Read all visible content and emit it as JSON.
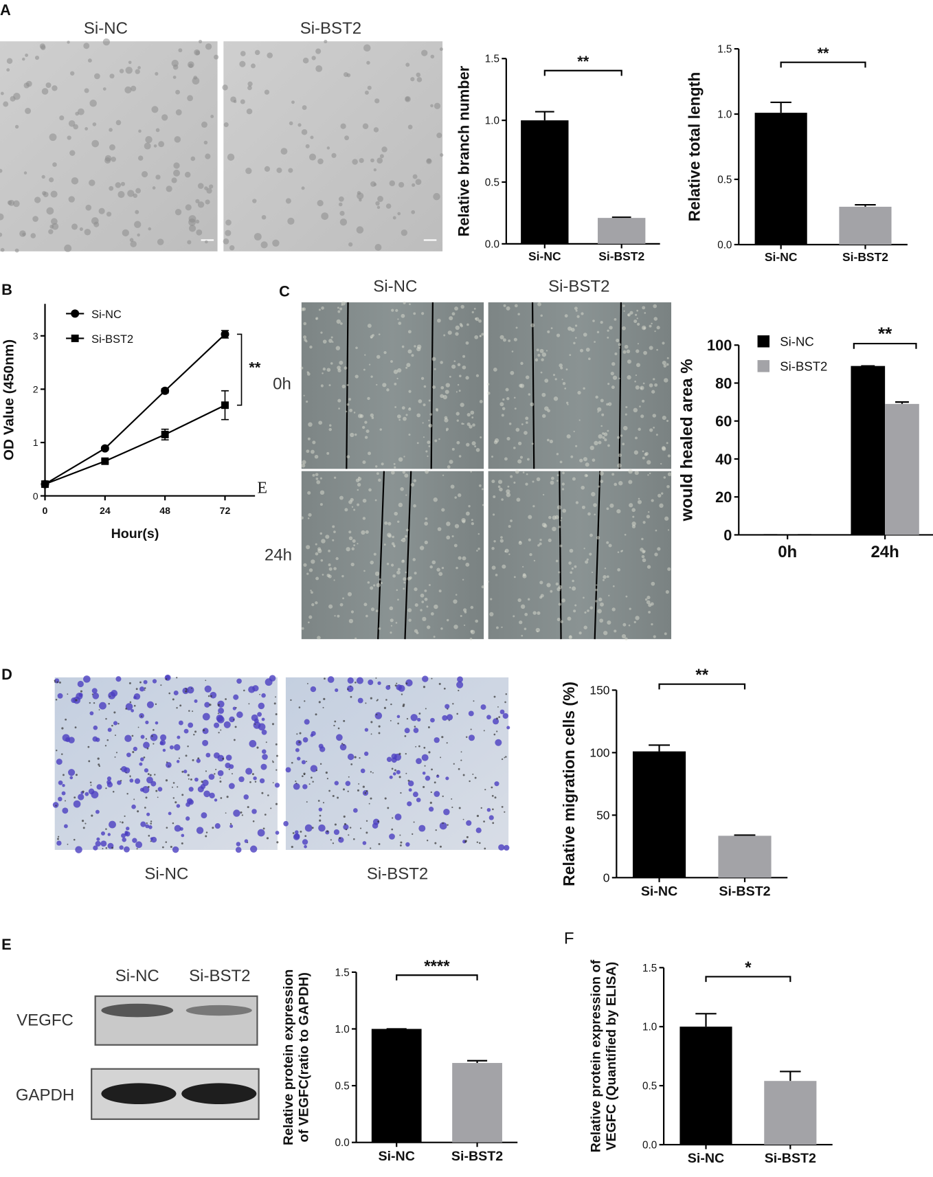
{
  "panel_labels": [
    "A",
    "B",
    "C",
    "D",
    "E",
    "F"
  ],
  "images": {
    "a_cols": [
      "Si-NC",
      "Si-BST2"
    ],
    "c_cols": [
      "Si-NC",
      "Si-BST2"
    ],
    "c_rows": [
      "0h",
      "24h"
    ],
    "d_cols": [
      "Si-NC",
      "Si-BST2"
    ],
    "e_cols": [
      "Si-NC",
      "Si-BST2"
    ],
    "e_rows": [
      "VEGFC",
      "GAPDH"
    ]
  },
  "chart_data": [
    {
      "type": "bar",
      "ylabel": [
        "Relative branch number"
      ],
      "categories": [
        "Si-NC",
        "Si-BST2"
      ],
      "values": [
        1.0,
        0.21
      ],
      "errors": [
        0.07,
        0.005
      ],
      "colors": [
        "#000000",
        "#a3a3a7"
      ],
      "ylim": [
        0,
        1.5
      ],
      "yticks": [
        {
          "value": 0,
          "label": "0.0"
        },
        0.5,
        {
          "value": 1,
          "label": "1.0"
        },
        1.5
      ],
      "significance": "**"
    },
    {
      "type": "bar",
      "ylabel": [
        "Relative total length"
      ],
      "categories": [
        "Si-NC",
        "Si-BST2"
      ],
      "values": [
        1.01,
        0.29
      ],
      "errors": [
        0.08,
        0.015
      ],
      "colors": [
        "#000000",
        "#a3a3a7"
      ],
      "ylim": [
        0,
        1.5
      ],
      "yticks": [
        {
          "value": 0,
          "label": "0.0"
        },
        0.5,
        {
          "value": 1,
          "label": "1.0"
        },
        1.5
      ],
      "significance": "**"
    },
    {
      "type": "line",
      "ylabel": [
        "OD Value (450nm)"
      ],
      "xlabel": "Hour(s)",
      "x": [
        0,
        24,
        48,
        72
      ],
      "series": [
        {
          "name": "Si-NC",
          "color": "#000000",
          "marker": "circle",
          "values": [
            0.22,
            0.89,
            1.97,
            3.03
          ],
          "errors": [
            0.02,
            0.03,
            0.04,
            0.07
          ]
        },
        {
          "name": "Si-BST2",
          "color": "#000000",
          "marker": "square",
          "values": [
            0.22,
            0.65,
            1.15,
            1.7
          ],
          "errors": [
            0.02,
            0.03,
            0.1,
            0.27
          ]
        }
      ],
      "xlim": [
        0,
        84
      ],
      "ylim": [
        0,
        3.6
      ],
      "xticks": [
        0,
        24,
        48,
        72
      ],
      "yticks": [
        0,
        1,
        2,
        3
      ],
      "significance": "**",
      "corner_mark": "E"
    },
    {
      "type": "grouped-bar",
      "ylabel": [
        "would healed area %"
      ],
      "categories": [
        "0h",
        "24h"
      ],
      "series": [
        {
          "name": "Si-NC",
          "color": "#000000",
          "values": [
            0,
            89
          ],
          "errors": [
            0,
            0
          ]
        },
        {
          "name": "Si-BST2",
          "color": "#a3a3a7",
          "values": [
            0,
            69
          ],
          "errors": [
            0,
            1
          ]
        }
      ],
      "ylim": [
        0,
        100
      ],
      "yticks": [
        0,
        20,
        40,
        60,
        80,
        100
      ],
      "significance": "**"
    },
    {
      "type": "bar",
      "ylabel": [
        "Relative migration cells (%)"
      ],
      "categories": [
        "Si-NC",
        "Si-BST2"
      ],
      "values": [
        101,
        33.5
      ],
      "errors": [
        5,
        0.5
      ],
      "colors": [
        "#000000",
        "#a3a3a7"
      ],
      "ylim": [
        0,
        150
      ],
      "yticks": [
        0,
        50,
        100,
        150
      ],
      "significance": "**"
    },
    {
      "type": "bar",
      "ylabel": [
        "Relative protein expression",
        "of VEGFC(ratio to GAPDH)"
      ],
      "categories": [
        "Si-NC",
        "Si-BST2"
      ],
      "values": [
        1.0,
        0.7
      ],
      "errors": [
        0,
        0.02
      ],
      "colors": [
        "#000000",
        "#a3a3a7"
      ],
      "ylim": [
        0,
        1.5
      ],
      "yticks": [
        {
          "value": 0,
          "label": "0.0"
        },
        0.5,
        {
          "value": 1,
          "label": "1.0"
        },
        1.5
      ],
      "significance": "****"
    },
    {
      "type": "bar",
      "ylabel": [
        "Relative protein expression of",
        "VEGFC (Quantified by ELISA)"
      ],
      "categories": [
        "Si-NC",
        "Si-BST2"
      ],
      "values": [
        1.0,
        0.54
      ],
      "errors": [
        0.11,
        0.08
      ],
      "colors": [
        "#000000",
        "#a3a3a7"
      ],
      "ylim": [
        0,
        1.5
      ],
      "yticks": [
        {
          "value": 0,
          "label": "0.0"
        },
        0.5,
        {
          "value": 1,
          "label": "1.0"
        },
        1.5
      ],
      "significance": "*"
    }
  ]
}
